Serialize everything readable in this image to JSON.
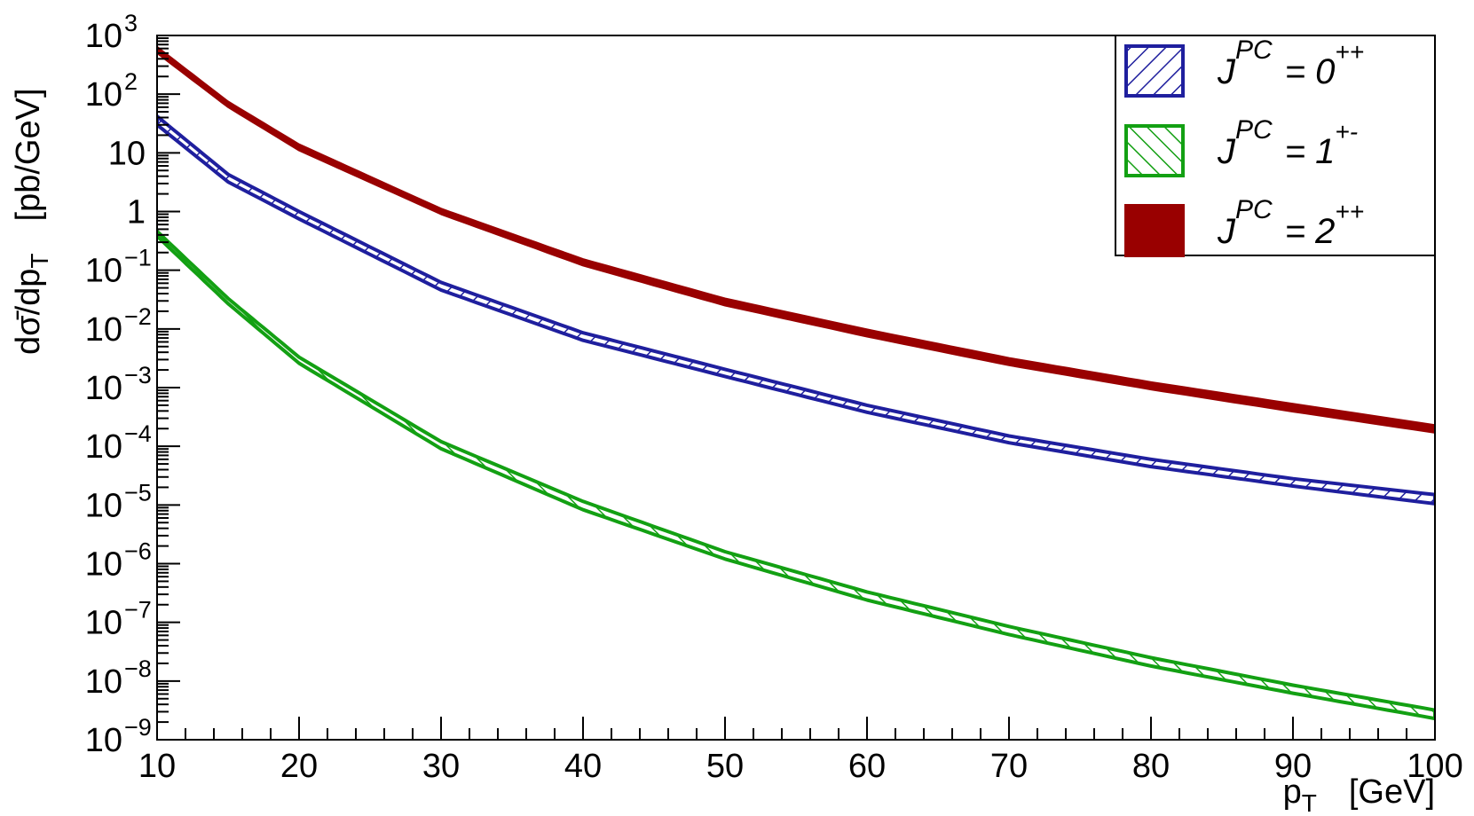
{
  "chart_data": {
    "type": "line",
    "title": "",
    "xlabel": {
      "main": "p",
      "sub": "T",
      "unit": "[GeV]"
    },
    "ylabel": {
      "main": "dσ̄/dp",
      "sub": "T",
      "unit": "[pb/GeV]"
    },
    "xlim": [
      10,
      100
    ],
    "ylim": [
      1e-09,
      1000
    ],
    "yscale": "log",
    "grid": false,
    "legend_position": "top-right",
    "x_ticks": [
      {
        "value": 10,
        "label": "10"
      },
      {
        "value": 20,
        "label": "20"
      },
      {
        "value": 30,
        "label": "30"
      },
      {
        "value": 40,
        "label": "40"
      },
      {
        "value": 50,
        "label": "50"
      },
      {
        "value": 60,
        "label": "60"
      },
      {
        "value": 70,
        "label": "70"
      },
      {
        "value": 80,
        "label": "80"
      },
      {
        "value": 90,
        "label": "90"
      },
      {
        "value": 100,
        "label": "100"
      }
    ],
    "y_ticks": [
      {
        "exp": 3,
        "base": "10",
        "sup": "3"
      },
      {
        "exp": 2,
        "base": "10",
        "sup": "2"
      },
      {
        "exp": 1,
        "base": "10",
        "sup": ""
      },
      {
        "exp": 0,
        "base": "1",
        "sup": ""
      },
      {
        "exp": -1,
        "base": "10",
        "sup": "−1"
      },
      {
        "exp": -2,
        "base": "10",
        "sup": "−2"
      },
      {
        "exp": -3,
        "base": "10",
        "sup": "−3"
      },
      {
        "exp": -4,
        "base": "10",
        "sup": "−4"
      },
      {
        "exp": -5,
        "base": "10",
        "sup": "−5"
      },
      {
        "exp": -6,
        "base": "10",
        "sup": "−6"
      },
      {
        "exp": -7,
        "base": "10",
        "sup": "−7"
      },
      {
        "exp": -8,
        "base": "10",
        "sup": "−8"
      },
      {
        "exp": -9,
        "base": "10",
        "sup": "−9"
      }
    ],
    "x": [
      10,
      15,
      20,
      30,
      40,
      50,
      60,
      70,
      80,
      90,
      100
    ],
    "series": [
      {
        "label": {
          "base": "J",
          "sup": "PC",
          "rest": "= 0",
          "state": "++"
        },
        "color": "#1f1f9e",
        "style": "hatched-band",
        "hatch": "backslash",
        "lower": [
          30,
          3.2,
          0.75,
          0.046,
          0.0064,
          0.00155,
          0.00038,
          0.000115,
          4.5e-05,
          2.1e-05,
          1.05e-05
        ],
        "upper": [
          42,
          4.3,
          1.0,
          0.062,
          0.0086,
          0.00205,
          0.0005,
          0.00015,
          6e-05,
          2.8e-05,
          1.5e-05
        ]
      },
      {
        "label": {
          "base": "J",
          "sup": "PC",
          "rest": "= 1",
          "state": "+-"
        },
        "color": "#13a013",
        "style": "hatched-band",
        "hatch": "slash",
        "lower": [
          0.38,
          0.027,
          0.0026,
          9.1e-05,
          8.3e-06,
          1.2e-06,
          2.4e-07,
          6.2e-08,
          1.8e-08,
          6.2e-09,
          2.3e-09
        ],
        "upper": [
          0.46,
          0.033,
          0.0033,
          0.00012,
          1.15e-05,
          1.6e-06,
          3.3e-07,
          8.5e-08,
          2.5e-08,
          8.5e-09,
          3.2e-09
        ]
      },
      {
        "label": {
          "base": "J",
          "sup": "PC",
          "rest": "= 2",
          "state": "++"
        },
        "color": "#990000",
        "style": "solid-band",
        "hatch": "none",
        "lower": [
          500,
          60,
          11,
          0.9,
          0.12,
          0.025,
          0.0074,
          0.0024,
          0.00093,
          0.00039,
          0.00017
        ],
        "upper": [
          640,
          75,
          14,
          1.12,
          0.155,
          0.033,
          0.0098,
          0.0032,
          0.00124,
          0.00053,
          0.00023
        ]
      }
    ]
  }
}
